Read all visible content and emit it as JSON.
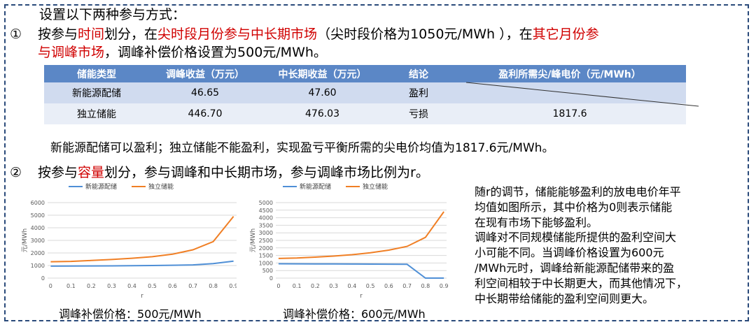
{
  "intro": "设置以下两种参与方式：",
  "item1": {
    "num": "①",
    "segments": [
      {
        "text": "按参与",
        "red": false
      },
      {
        "text": "时间",
        "red": true
      },
      {
        "text": "划分，在",
        "red": false
      },
      {
        "text": "尖时段月份参与中长期市场",
        "red": true
      },
      {
        "text": "（尖时段价格为1050元/MWh ），在",
        "red": false
      },
      {
        "text": "其它月份参",
        "red": true
      }
    ],
    "line2_segments": [
      {
        "text": "与调峰市场",
        "red": true
      },
      {
        "text": "，调峰补偿价格设置为500元/MWh。",
        "red": false
      }
    ]
  },
  "table": {
    "headers": [
      "储能类型",
      "调峰收益（万元）",
      "中长期收益（万元）",
      "结论",
      "盈利所需尖/峰电价（元/MWh）"
    ],
    "rows": [
      [
        "新能源配储",
        "46.65",
        "47.60",
        "盈利",
        ""
      ],
      [
        "独立储能",
        "446.70",
        "476.03",
        "亏损",
        "1817.6"
      ]
    ]
  },
  "summary": "新能源配储可以盈利；独立储能不能盈利，实现盈亏平衡所需的尖电价均值为1817.6元/MWh。",
  "item2": {
    "num": "②",
    "segments": [
      {
        "text": "按参与",
        "red": false
      },
      {
        "text": "容量",
        "red": true
      },
      {
        "text": "划分，参与调峰和中长期市场，参与调峰市场比例为r。",
        "red": false
      }
    ]
  },
  "chart_data": [
    {
      "type": "line",
      "xlabel": "r",
      "ylabel": "元/MWh",
      "x": [
        0,
        0.1,
        0.2,
        0.3,
        0.4,
        0.5,
        0.6,
        0.7,
        0.8,
        0.9
      ],
      "ylim": [
        0,
        6000
      ],
      "yticks": [
        0,
        1000,
        2000,
        3000,
        4000,
        5000,
        6000
      ],
      "grid": true,
      "legend": "top",
      "series": [
        {
          "name": "新能源配储",
          "color": "#4f8fd6",
          "values": [
            950,
            960,
            965,
            975,
            985,
            1000,
            1020,
            1050,
            1150,
            1350
          ]
        },
        {
          "name": "独立储能",
          "color": "#f07f25",
          "values": [
            1300,
            1330,
            1400,
            1480,
            1580,
            1700,
            1900,
            2250,
            2900,
            4900
          ]
        }
      ],
      "caption": "调峰补偿价格：500元/MWh"
    },
    {
      "type": "line",
      "xlabel": "r",
      "ylabel": "元/MWh",
      "x": [
        0,
        0.1,
        0.2,
        0.3,
        0.4,
        0.5,
        0.6,
        0.7,
        0.8,
        0.9
      ],
      "ylim": [
        0,
        5000
      ],
      "yticks": [
        0,
        500,
        1000,
        1500,
        2000,
        2500,
        3000,
        3500,
        4000,
        4500,
        5000
      ],
      "grid": true,
      "legend": "top",
      "series": [
        {
          "name": "新能源配储",
          "color": "#4f8fd6",
          "values": [
            950,
            945,
            940,
            935,
            930,
            925,
            920,
            910,
            0,
            0
          ]
        },
        {
          "name": "独立储能",
          "color": "#f07f25",
          "values": [
            1300,
            1330,
            1390,
            1460,
            1550,
            1680,
            1850,
            2100,
            2700,
            4400
          ]
        }
      ],
      "caption": "调峰补偿价格：600元/MWh"
    }
  ],
  "side_text_lines": [
    "随r的调节，储能能够盈利的放电电价年平",
    "均值如图所示，其中价格为0则表示储能",
    "在现有市场下能够盈利。",
    "调峰对不同规模储能所提供的盈利空间大",
    "小可能不同。当调峰价格设置为600元",
    "/MWh元时，调峰给新能源配储带来的盈",
    "利空间相较于中长期更大，而其他情况下，",
    "中长期带给储能的盈利空间则更大。"
  ]
}
